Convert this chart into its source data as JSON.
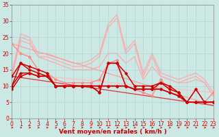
{
  "bg_color": "#cce8e4",
  "grid_color": "#aacccc",
  "xlabel": "Vent moyen/en rafales ( km/h )",
  "xlabel_fontsize": 6.5,
  "tick_color": "#cc0000",
  "tick_fontsize": 5.5,
  "x_values": [
    0,
    1,
    2,
    3,
    4,
    5,
    6,
    7,
    8,
    9,
    10,
    11,
    12,
    13,
    14,
    15,
    16,
    17,
    18,
    19,
    20,
    21,
    22,
    23
  ],
  "ylim": [
    0,
    35
  ],
  "xlim": [
    0,
    23
  ],
  "yticks": [
    0,
    5,
    10,
    15,
    20,
    25,
    30,
    35
  ],
  "xtick_labels": [
    "0",
    "1",
    "2",
    "3",
    "4",
    "5",
    "6",
    "7",
    "8",
    "9",
    "10",
    "11",
    "12",
    "13",
    "14",
    "15",
    "16",
    "17",
    "18",
    "19",
    "20",
    "21",
    "22",
    "23"
  ],
  "lines": [
    {
      "y": [
        14,
        26,
        25,
        20,
        20,
        19,
        18,
        17,
        17,
        18,
        20,
        29,
        32,
        21,
        24,
        14,
        20,
        14,
        13,
        12,
        13,
        14,
        12,
        8
      ],
      "color": "#ffaaaa",
      "lw": 0.9,
      "marker": null,
      "zorder": 1
    },
    {
      "y": [
        13,
        25,
        24,
        19,
        19,
        18,
        17,
        16,
        16,
        17,
        19,
        28,
        31,
        20,
        23,
        13,
        19,
        13,
        12,
        11,
        12,
        13,
        11,
        7
      ],
      "color": "#ffaaaa",
      "lw": 0.9,
      "marker": null,
      "zorder": 1
    },
    {
      "y": [
        13,
        24,
        23,
        19,
        18,
        17,
        16,
        15,
        15,
        15,
        16,
        20,
        20,
        17,
        19,
        12,
        16,
        13,
        12,
        11,
        11,
        12,
        11,
        7
      ],
      "color": "#ffaaaa",
      "lw": 0.9,
      "marker": null,
      "zorder": 1
    },
    {
      "y": [
        23,
        20,
        19,
        15,
        14,
        12,
        11,
        11,
        11,
        11,
        12,
        17,
        18,
        10,
        9,
        8,
        7,
        12,
        9,
        8,
        5,
        9,
        5,
        8
      ],
      "color": "#ff8888",
      "lw": 1.0,
      "marker": "D",
      "ms": 1.8,
      "zorder": 3
    },
    {
      "y": [
        13,
        17,
        16,
        15,
        14,
        10,
        10,
        10,
        10,
        10,
        8,
        17,
        17,
        14,
        10,
        10,
        10,
        11,
        10,
        8,
        5,
        9,
        5,
        5
      ],
      "color": "#cc0000",
      "lw": 1.1,
      "marker": "D",
      "ms": 1.8,
      "zorder": 4
    },
    {
      "y": [
        10,
        17,
        15,
        14,
        13,
        10,
        10,
        10,
        10,
        10,
        8,
        17,
        17,
        10,
        9,
        9,
        9,
        11,
        9,
        8,
        5,
        5,
        5,
        5
      ],
      "color": "#cc0000",
      "lw": 1.1,
      "marker": "D",
      "ms": 1.8,
      "zorder": 4
    },
    {
      "y": [
        10,
        14,
        14,
        13,
        13,
        10,
        10,
        10,
        10,
        10,
        10,
        10,
        10,
        10,
        9,
        9,
        9,
        9,
        8,
        7,
        5,
        5,
        5,
        5
      ],
      "color": "#cc0000",
      "lw": 1.1,
      "marker": "D",
      "ms": 1.8,
      "zorder": 4
    },
    {
      "y": [
        9,
        13,
        14,
        13,
        13,
        10,
        10,
        10,
        10,
        10,
        10,
        10,
        10,
        10,
        9,
        9,
        9,
        9,
        8,
        7,
        5,
        5,
        5,
        5
      ],
      "color": "#cc0000",
      "lw": 1.1,
      "marker": "D",
      "ms": 1.8,
      "zorder": 4
    }
  ],
  "trend_lines": [
    {
      "y_start": 14,
      "y_end": 8,
      "color": "#ffbbbb",
      "lw": 0.8,
      "zorder": 2
    },
    {
      "y_start": 23,
      "y_end": 4,
      "color": "#ff9999",
      "lw": 0.8,
      "zorder": 2
    },
    {
      "y_start": 13,
      "y_end": 4,
      "color": "#dd3333",
      "lw": 0.9,
      "zorder": 3
    }
  ]
}
